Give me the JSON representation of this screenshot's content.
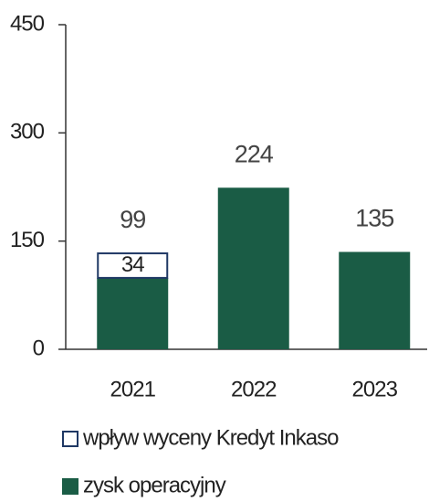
{
  "chart_data": {
    "type": "bar",
    "stacked": true,
    "categories": [
      "2021",
      "2022",
      "2023"
    ],
    "series": [
      {
        "name": "zysk operacyjny",
        "color": "#1a5c45",
        "values": [
          99,
          224,
          135
        ]
      },
      {
        "name": "wpływ wyceny Kredyt Inkaso",
        "color": "#1f3864",
        "values": [
          34,
          null,
          null
        ]
      }
    ],
    "ylim": [
      0,
      450
    ],
    "yticks": [
      0,
      150,
      300,
      450
    ]
  }
}
